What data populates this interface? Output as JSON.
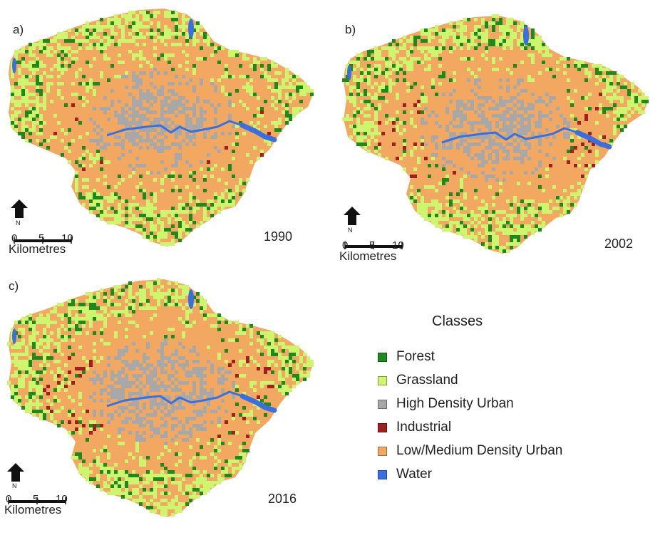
{
  "panels": [
    {
      "id": "a",
      "label": "a)",
      "year": "1990"
    },
    {
      "id": "b",
      "label": "b)",
      "year": "2002"
    },
    {
      "id": "c",
      "label": "c)",
      "year": "2016"
    }
  ],
  "scale_bar": {
    "ticks": [
      "0",
      "5",
      "10"
    ],
    "unit": "Kilometres"
  },
  "north_arrow": {
    "label": "N"
  },
  "legend": {
    "title": "Classes",
    "items": [
      {
        "label": "Forest",
        "color": "#1e8a1e"
      },
      {
        "label": "Grassland",
        "color": "#cdf56e"
      },
      {
        "label": "High Density Urban",
        "color": "#a8a8a8"
      },
      {
        "label": "Industrial",
        "color": "#a11f1f"
      },
      {
        "label": "Low/Medium Density Urban",
        "color": "#f2a860"
      },
      {
        "label": "Water",
        "color": "#3a6fe0"
      }
    ]
  }
}
